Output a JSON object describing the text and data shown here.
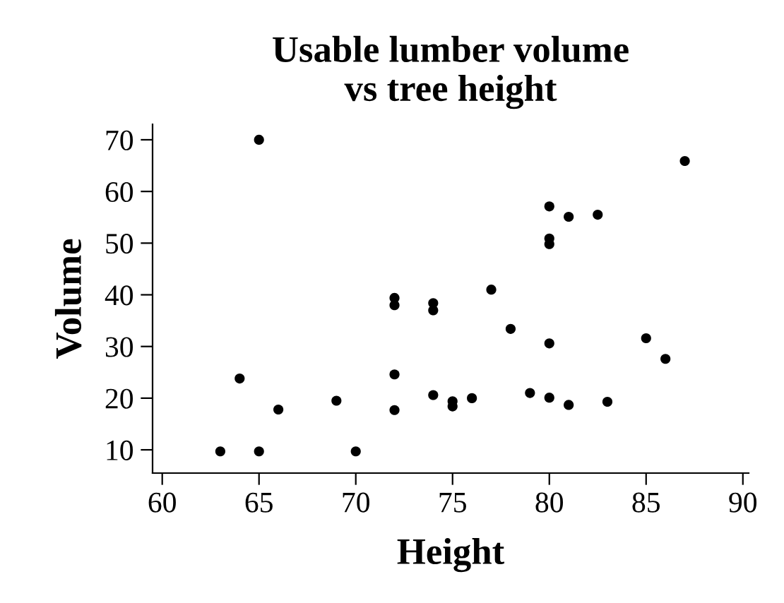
{
  "chart_data": {
    "type": "scatter",
    "title": "Usable lumber volume\nvs tree height",
    "xlabel": "Height",
    "ylabel": "Volume",
    "x": [
      63,
      64,
      65,
      65,
      66,
      69,
      70,
      72,
      72,
      72,
      72,
      74,
      74,
      74,
      75,
      75,
      76,
      77,
      78,
      79,
      80,
      80,
      80,
      80,
      80,
      81,
      81,
      82.5,
      83,
      85,
      86,
      87
    ],
    "values": [
      9.7,
      23.8,
      70,
      9.7,
      17.8,
      19.5,
      9.7,
      39.4,
      38,
      24.6,
      17.7,
      38.4,
      37,
      20.6,
      19.4,
      18.4,
      20,
      41,
      33.4,
      21,
      57.1,
      50.9,
      49.8,
      30.6,
      20.1,
      55.1,
      18.7,
      55.5,
      19.3,
      31.6,
      27.6,
      65.9
    ],
    "color": "#000000",
    "marker": "circle",
    "xlim": [
      59.5,
      90.3
    ],
    "ylim": [
      5.5,
      73
    ],
    "xticks": [
      60,
      65,
      70,
      75,
      80,
      85,
      90
    ],
    "yticks": [
      10,
      20,
      30,
      40,
      50,
      60,
      70
    ],
    "grid": false
  }
}
